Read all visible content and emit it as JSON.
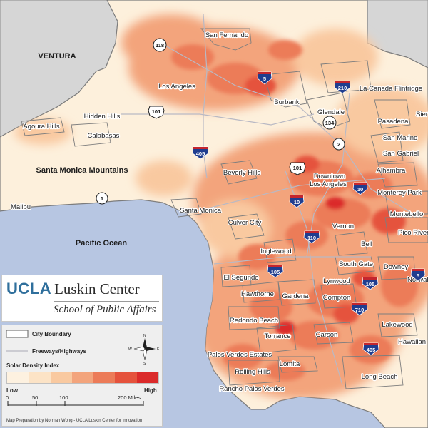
{
  "regions": {
    "ventura": "VENTURA",
    "santa_monica_mountains": "Santa Monica Mountains",
    "pacific_ocean": "Pacific Ocean"
  },
  "places": {
    "san_fernando": "San Fernando",
    "los_angeles_valley": "Los Angeles",
    "la_canada_flintridge": "La Canada Flintridge",
    "burbank": "Burbank",
    "glendale": "Glendale",
    "pasadena": "Pasadena",
    "sierra": "Sier",
    "hidden_hills": "Hidden Hills",
    "agoura_hills": "Agoura Hills",
    "calabasas": "Calabasas",
    "san_marino": "San Marino",
    "san_gabriel": "San Gabriel",
    "beverly_hills": "Beverly Hills",
    "downtown": "Downtown",
    "los_angeles_dt": "Los Angeles",
    "alhambra": "Alhambra",
    "malibu": "Malibu",
    "santa_monica": "Santa Monica",
    "monterey_park": "Monterey Park",
    "culver_city": "Culver City",
    "vernon": "Vernon",
    "montebello": "Montebello",
    "pico_rivera": "Pico River",
    "bell": "Bell",
    "inglewood": "Inglewood",
    "south_gate": "South Gate",
    "downey": "Downey",
    "el_segundo": "El Segundo",
    "lynwood": "Lynwood",
    "norwalk": "Norwal",
    "hawthorne": "Hawthorne",
    "gardena": "Gardena",
    "compton": "Compton",
    "redondo_beach": "Redondo Beach",
    "lakewood": "Lakewood",
    "torrance": "Torrance",
    "carson": "Carson",
    "hawaiian_gardens": "Hawaiian",
    "palos_verdes_estates": "Palos Verdes Estates",
    "lomita": "Lomita",
    "rolling_hills": "Rolling Hills",
    "long_beach": "Long Beach",
    "rancho_palos_verdes": "Rancho Palos Verdes"
  },
  "shields": {
    "sr118": "118",
    "us101_valley": "101",
    "us101_dt": "101",
    "sr134": "134",
    "sr2": "2",
    "sr1": "1",
    "i5_valley": "5",
    "i210": "210",
    "i405_north": "405",
    "i10_dt": "10",
    "i10_east": "10",
    "i110": "110",
    "i105": "105",
    "i105_east": "105",
    "i5_south": "5",
    "i710": "710",
    "i405_south": "405"
  },
  "brand": {
    "ucla": "UCLA",
    "luskin": "Luskin Center",
    "school": "School of Public Affairs"
  },
  "legend": {
    "city_boundary": "City Boundary",
    "freeways": "Freeways/Highways",
    "solar_density_index": "Solar Density Index",
    "low": "Low",
    "high": "High",
    "north_label": "N",
    "east_label": "E",
    "west_label": "W",
    "south_label": "S",
    "scale_0": "0",
    "scale_50": "50",
    "scale_100": "100",
    "scale_200": "200 Miles",
    "credit": "Map Preparation by Norman Wong - UCLA Luskin Center for Innovation",
    "density_colors": [
      "#fdf1e0",
      "#fce3c6",
      "#f9c9a0",
      "#f3a47c",
      "#ec7b58",
      "#e5523c",
      "#db2a2a"
    ]
  },
  "colors": {
    "ocean": "#b7c6e2",
    "outside_county": "#d6d6d6",
    "land_low": "#fdf0dc",
    "ucla_blue": "#2f6f9c",
    "interstate_blue": "#1f3d8f",
    "interstate_red": "#c4262e"
  }
}
